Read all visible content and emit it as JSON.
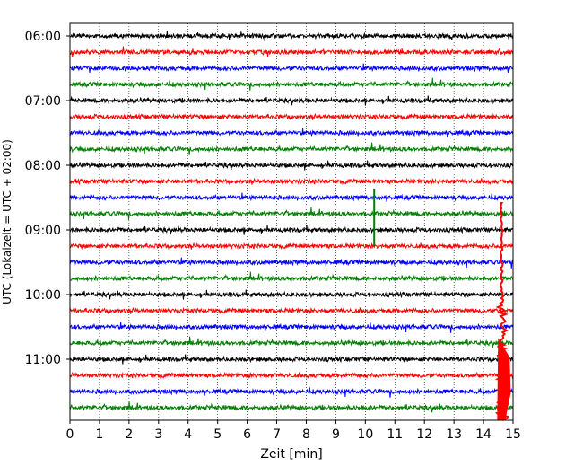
{
  "chart_data": {
    "type": "line",
    "title": "",
    "xlabel": "Zeit  [min]",
    "ylabel": "UTC (Lokalzeit = UTC + 02:00)",
    "xlim": [
      0,
      15
    ],
    "x_ticks": [
      "0",
      "1",
      "2",
      "3",
      "4",
      "5",
      "6",
      "7",
      "8",
      "9",
      "10",
      "11",
      "12",
      "13",
      "14",
      "15"
    ],
    "y_ticks": [
      "06:00",
      "07:00",
      "08:00",
      "09:00",
      "10:00",
      "11:00"
    ],
    "grid": "vertical dotted",
    "colors": [
      "#000000",
      "#ff0000",
      "#0000ff",
      "#008000"
    ],
    "traces": [
      {
        "start": "06:00",
        "color": "#000000"
      },
      {
        "start": "06:15",
        "color": "#ff0000"
      },
      {
        "start": "06:30",
        "color": "#0000ff"
      },
      {
        "start": "06:45",
        "color": "#008000"
      },
      {
        "start": "07:00",
        "color": "#000000"
      },
      {
        "start": "07:15",
        "color": "#ff0000"
      },
      {
        "start": "07:30",
        "color": "#0000ff"
      },
      {
        "start": "07:45",
        "color": "#008000"
      },
      {
        "start": "08:00",
        "color": "#000000"
      },
      {
        "start": "08:15",
        "color": "#ff0000"
      },
      {
        "start": "08:30",
        "color": "#0000ff"
      },
      {
        "start": "08:45",
        "color": "#008000"
      },
      {
        "start": "09:00",
        "color": "#000000"
      },
      {
        "start": "09:15",
        "color": "#ff0000"
      },
      {
        "start": "09:30",
        "color": "#0000ff"
      },
      {
        "start": "09:45",
        "color": "#008000"
      },
      {
        "start": "10:00",
        "color": "#000000"
      },
      {
        "start": "10:15",
        "color": "#ff0000"
      },
      {
        "start": "10:30",
        "color": "#0000ff"
      },
      {
        "start": "10:45",
        "color": "#008000"
      },
      {
        "start": "11:00",
        "color": "#000000"
      },
      {
        "start": "11:15",
        "color": "#ff0000"
      },
      {
        "start": "11:30",
        "color": "#0000ff"
      },
      {
        "start": "11:45",
        "color": "#008000"
      }
    ],
    "events": [
      {
        "trace_start": "08:45",
        "minute": 10.3,
        "type": "spike"
      },
      {
        "trace_start": "11:15",
        "minute": 14.6,
        "type": "earthquake-onset"
      }
    ]
  }
}
